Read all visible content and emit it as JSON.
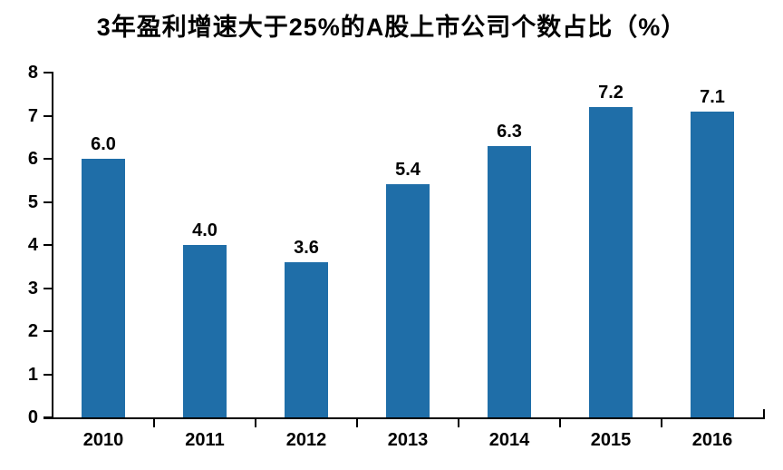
{
  "chart_data": {
    "type": "bar",
    "title": "3年盈利增速大于25%的A股上市公司个数占比（%）",
    "categories": [
      "2010",
      "2011",
      "2012",
      "2013",
      "2014",
      "2015",
      "2016"
    ],
    "values": [
      6.0,
      4.0,
      3.6,
      5.4,
      6.3,
      7.2,
      7.1
    ],
    "value_labels": [
      "6.0",
      "4.0",
      "3.6",
      "5.4",
      "6.3",
      "7.2",
      "7.1"
    ],
    "xlabel": "",
    "ylabel": "",
    "ylim": [
      0,
      8
    ],
    "yticks": [
      "0",
      "1",
      "2",
      "3",
      "4",
      "5",
      "6",
      "7",
      "8"
    ],
    "grid": false,
    "legend": false,
    "bar_color": "#1F6EA8",
    "axis_color": "#000000",
    "text_color": "#000000",
    "background_color": "#FFFFFF"
  }
}
